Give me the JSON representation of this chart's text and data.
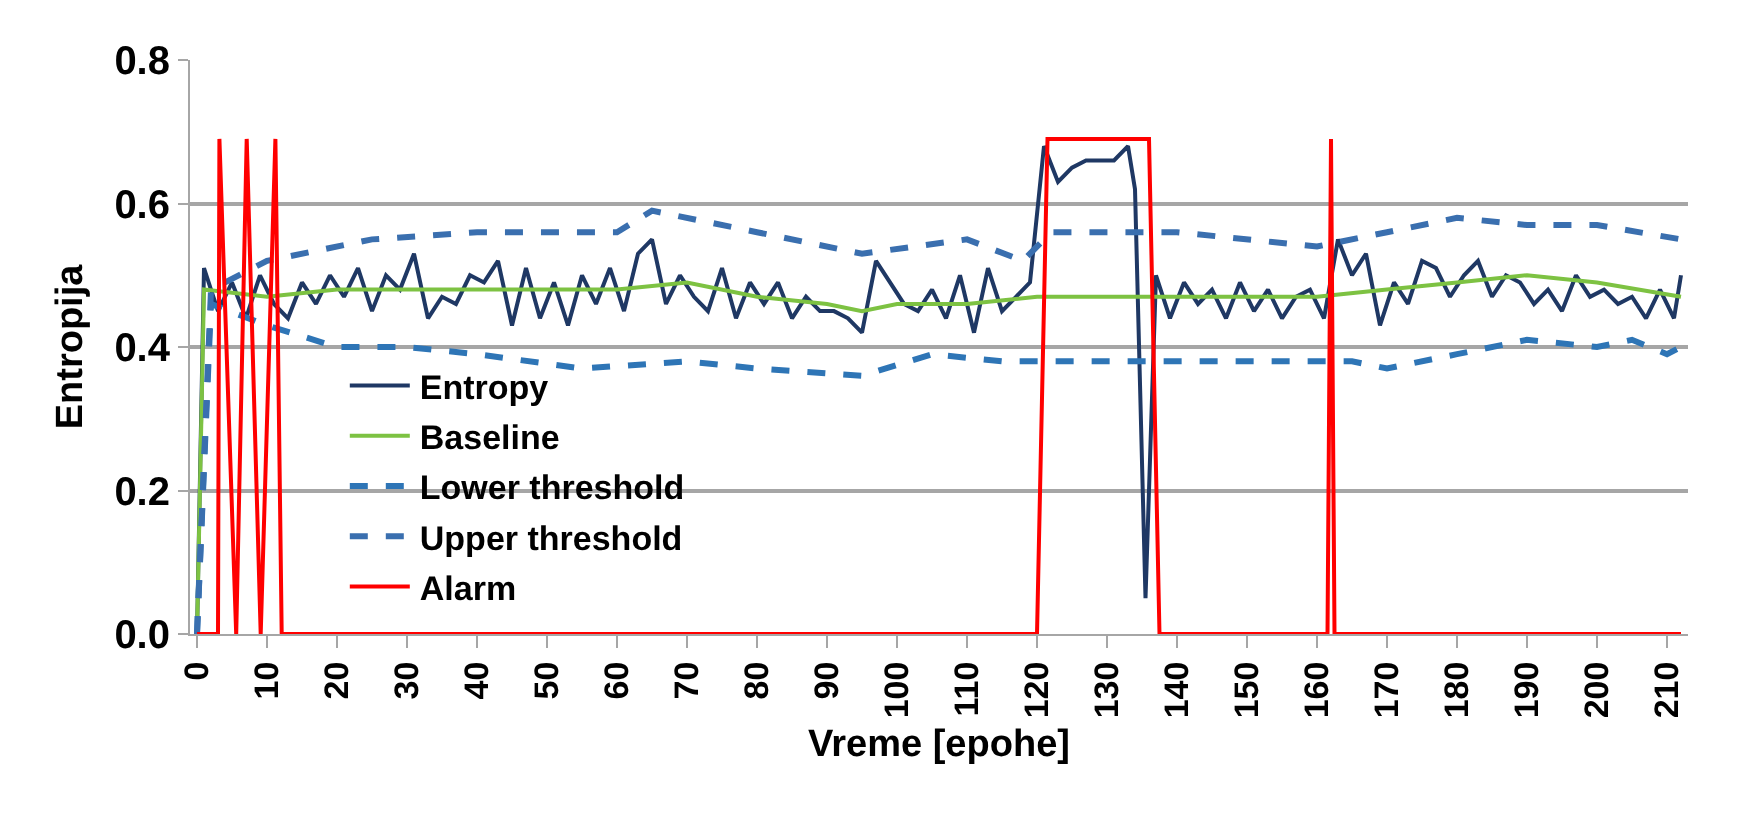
{
  "chart_data": {
    "type": "line",
    "xlabel": "Vreme [epohe]",
    "ylabel": "Entropija",
    "xlim": [
      -1,
      213
    ],
    "ylim": [
      0,
      0.8
    ],
    "xticks": [
      0,
      10,
      20,
      30,
      40,
      50,
      60,
      70,
      80,
      90,
      100,
      110,
      120,
      130,
      140,
      150,
      160,
      170,
      180,
      190,
      200,
      210
    ],
    "yticks": [
      {
        "value": 0,
        "label": "0.0"
      },
      {
        "value": 0.2,
        "label": "0.2"
      },
      {
        "value": 0.4,
        "label": "0.4"
      },
      {
        "value": 0.6,
        "label": "0.6"
      },
      {
        "value": 0.8,
        "label": "0.8"
      }
    ],
    "grid": "y",
    "legend": "bottom left",
    "marker": "none",
    "series": [
      {
        "name": "Entropy",
        "color": "#1f3864",
        "line_style": "solid",
        "x": [
          0,
          1,
          3,
          5,
          7,
          9,
          11,
          13,
          15,
          17,
          19,
          21,
          23,
          25,
          27,
          29,
          31,
          33,
          35,
          37,
          39,
          41,
          43,
          45,
          47,
          49,
          51,
          53,
          55,
          57,
          59,
          61,
          63,
          65,
          67,
          69,
          71,
          73,
          75,
          77,
          79,
          81,
          83,
          85,
          87,
          89,
          91,
          93,
          95,
          97,
          99,
          101,
          103,
          105,
          107,
          109,
          111,
          113,
          115,
          117,
          119,
          121,
          123,
          125,
          127,
          129,
          131,
          133,
          134,
          135.5,
          137,
          139,
          141,
          143,
          145,
          147,
          149,
          151,
          153,
          155,
          157,
          159,
          161,
          163,
          165,
          167,
          169,
          171,
          173,
          175,
          177,
          179,
          181,
          183,
          185,
          187,
          189,
          191,
          193,
          195,
          197,
          199,
          201,
          203,
          205,
          207,
          209,
          211,
          212
        ],
        "values": [
          0,
          0.51,
          0.45,
          0.49,
          0.44,
          0.5,
          0.46,
          0.44,
          0.49,
          0.46,
          0.5,
          0.47,
          0.51,
          0.45,
          0.5,
          0.48,
          0.53,
          0.44,
          0.47,
          0.46,
          0.5,
          0.49,
          0.52,
          0.43,
          0.51,
          0.44,
          0.49,
          0.43,
          0.5,
          0.46,
          0.51,
          0.45,
          0.53,
          0.55,
          0.46,
          0.5,
          0.47,
          0.45,
          0.51,
          0.44,
          0.49,
          0.46,
          0.49,
          0.44,
          0.47,
          0.45,
          0.45,
          0.44,
          0.42,
          0.52,
          0.49,
          0.46,
          0.45,
          0.48,
          0.44,
          0.5,
          0.42,
          0.51,
          0.45,
          0.47,
          0.49,
          0.68,
          0.63,
          0.65,
          0.66,
          0.66,
          0.66,
          0.68,
          0.62,
          0.05,
          0.5,
          0.44,
          0.49,
          0.46,
          0.48,
          0.44,
          0.49,
          0.45,
          0.48,
          0.44,
          0.47,
          0.48,
          0.44,
          0.55,
          0.5,
          0.53,
          0.43,
          0.49,
          0.46,
          0.52,
          0.51,
          0.47,
          0.5,
          0.52,
          0.47,
          0.5,
          0.49,
          0.46,
          0.48,
          0.45,
          0.5,
          0.47,
          0.48,
          0.46,
          0.47,
          0.44,
          0.48,
          0.44,
          0.5
        ]
      },
      {
        "name": "Baseline",
        "color": "#7dc242",
        "line_style": "solid",
        "x": [
          0,
          1,
          10,
          20,
          30,
          40,
          50,
          60,
          70,
          80,
          90,
          95,
          100,
          110,
          120,
          130,
          140,
          150,
          160,
          170,
          180,
          190,
          200,
          212
        ],
        "values": [
          0,
          0.48,
          0.47,
          0.48,
          0.48,
          0.48,
          0.48,
          0.48,
          0.49,
          0.47,
          0.46,
          0.45,
          0.46,
          0.46,
          0.47,
          0.47,
          0.47,
          0.47,
          0.47,
          0.48,
          0.49,
          0.5,
          0.49,
          0.47
        ]
      },
      {
        "name": "Lower threshold",
        "color": "#2e75b6",
        "line_style": "dashed",
        "x": [
          0,
          2,
          10,
          20,
          30,
          40,
          55,
          70,
          80,
          95,
          105,
          115,
          130,
          150,
          165,
          170,
          180,
          190,
          200,
          205,
          210,
          212
        ],
        "values": [
          0,
          0.46,
          0.43,
          0.4,
          0.4,
          0.39,
          0.37,
          0.38,
          0.37,
          0.36,
          0.39,
          0.38,
          0.38,
          0.38,
          0.38,
          0.37,
          0.39,
          0.41,
          0.4,
          0.41,
          0.39,
          0.4
        ]
      },
      {
        "name": "Upper threshold",
        "color": "#3a6faf",
        "line_style": "dashed",
        "x": [
          0,
          2,
          10,
          25,
          40,
          60,
          65,
          80,
          95,
          110,
          118,
          122,
          140,
          160,
          170,
          180,
          190,
          200,
          212
        ],
        "values": [
          0,
          0.48,
          0.52,
          0.55,
          0.56,
          0.56,
          0.59,
          0.56,
          0.53,
          0.55,
          0.52,
          0.56,
          0.56,
          0.54,
          0.56,
          0.58,
          0.57,
          0.57,
          0.55
        ]
      },
      {
        "name": "Alarm",
        "color": "#ff0000",
        "line_style": "solid",
        "x": [
          0,
          3,
          3.2,
          5.6,
          7.1,
          9.1,
          11.2,
          12.1,
          120,
          121.5,
          136,
          137.5,
          161.5,
          162,
          162.5,
          212
        ],
        "values": [
          0,
          0,
          0.69,
          0,
          0.69,
          0,
          0.69,
          0,
          0,
          0.69,
          0.69,
          0,
          0,
          0.69,
          0,
          0
        ]
      }
    ]
  }
}
